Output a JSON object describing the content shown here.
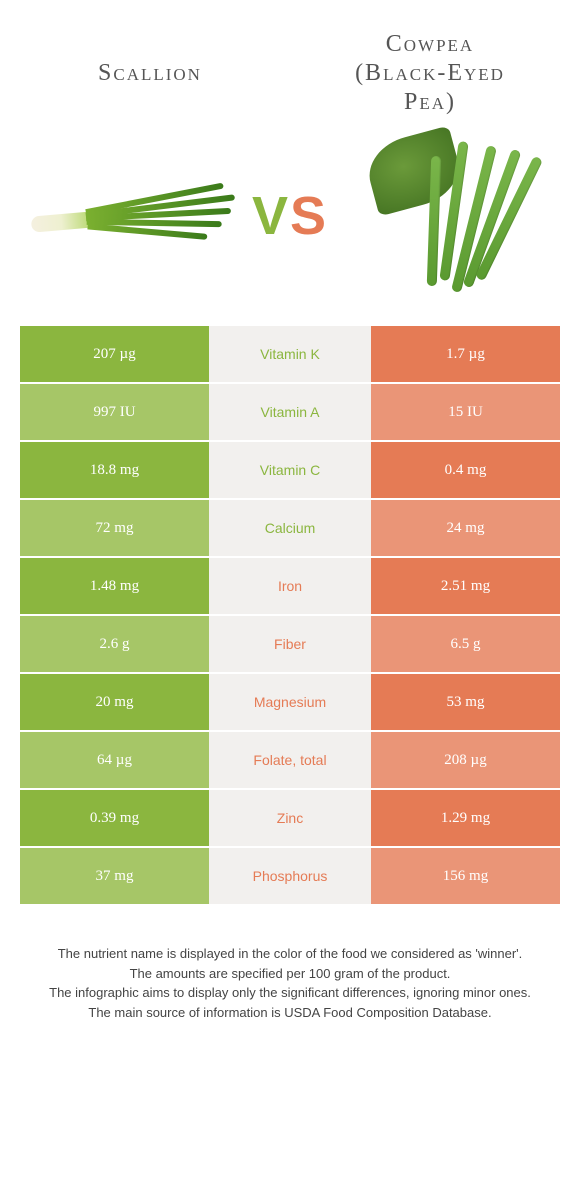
{
  "header": {
    "left_title": "Scallion",
    "right_title_line1": "Cowpea",
    "right_title_line2": "(Black-Eyed",
    "right_title_line3": "Pea)"
  },
  "vs": {
    "v": "V",
    "s": "S"
  },
  "colors": {
    "green": "#8bb63f",
    "green_alt": "#a6c667",
    "orange": "#e57b55",
    "orange_alt": "#ea9577",
    "mid_bg": "#f2f0ee"
  },
  "rows": [
    {
      "nutrient": "Vitamin K",
      "left": "207 µg",
      "right": "1.7 µg",
      "winner": "left"
    },
    {
      "nutrient": "Vitamin A",
      "left": "997 IU",
      "right": "15 IU",
      "winner": "left"
    },
    {
      "nutrient": "Vitamin C",
      "left": "18.8 mg",
      "right": "0.4 mg",
      "winner": "left"
    },
    {
      "nutrient": "Calcium",
      "left": "72 mg",
      "right": "24 mg",
      "winner": "left"
    },
    {
      "nutrient": "Iron",
      "left": "1.48 mg",
      "right": "2.51 mg",
      "winner": "right"
    },
    {
      "nutrient": "Fiber",
      "left": "2.6 g",
      "right": "6.5 g",
      "winner": "right"
    },
    {
      "nutrient": "Magnesium",
      "left": "20 mg",
      "right": "53 mg",
      "winner": "right"
    },
    {
      "nutrient": "Folate, total",
      "left": "64 µg",
      "right": "208 µg",
      "winner": "right"
    },
    {
      "nutrient": "Zinc",
      "left": "0.39 mg",
      "right": "1.29 mg",
      "winner": "right"
    },
    {
      "nutrient": "Phosphorus",
      "left": "37 mg",
      "right": "156 mg",
      "winner": "right"
    }
  ],
  "footer": {
    "line1": "The nutrient name is displayed in the color of the food we considered as 'winner'.",
    "line2": "The amounts are specified per 100 gram of the product.",
    "line3": "The infographic aims to display only the significant differences, ignoring minor ones.",
    "line4": "The main source of information is USDA Food Composition Database."
  }
}
